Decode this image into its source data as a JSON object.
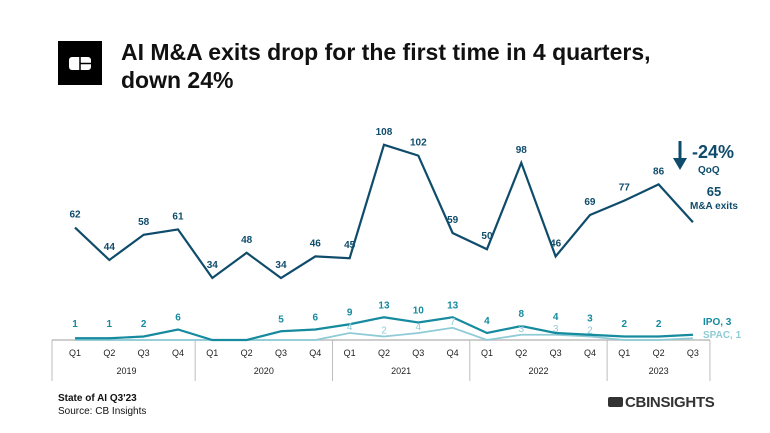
{
  "header": {
    "title_line1": "AI M&A exits drop for the first time in 4 quarters,",
    "title_line2": "down 24%",
    "logo": "CB Insights logo mark"
  },
  "footer": {
    "report": "State of AI Q3'23",
    "source": "Source: CB Insights",
    "brand": "CBINSIGHTS"
  },
  "colors": {
    "ma": "#0f4c6b",
    "ipo": "#168a9e",
    "spac": "#8fcbd6",
    "axis": "#bdbdbd"
  },
  "chart_data": {
    "type": "line",
    "title": "AI M&A exits drop for the first time in 4 quarters, down 24%",
    "quarters": [
      "Q1",
      "Q2",
      "Q3",
      "Q4",
      "Q1",
      "Q2",
      "Q3",
      "Q4",
      "Q1",
      "Q2",
      "Q3",
      "Q4",
      "Q1",
      "Q2",
      "Q3",
      "Q4",
      "Q1",
      "Q2",
      "Q3"
    ],
    "years": [
      {
        "label": "2019",
        "count": 4
      },
      {
        "label": "2020",
        "count": 4
      },
      {
        "label": "2021",
        "count": 4
      },
      {
        "label": "2022",
        "count": 4
      },
      {
        "label": "2023",
        "count": 3
      }
    ],
    "series": [
      {
        "name": "M&A exits",
        "values": [
          62,
          44,
          58,
          61,
          34,
          48,
          34,
          46,
          45,
          108,
          102,
          59,
          50,
          98,
          46,
          69,
          77,
          86,
          65
        ]
      },
      {
        "name": "IPO",
        "values": [
          1,
          1,
          2,
          6,
          0,
          0,
          5,
          6,
          9,
          13,
          10,
          13,
          4,
          8,
          4,
          3,
          2,
          2,
          3
        ]
      },
      {
        "name": "SPAC",
        "values": [
          0,
          0,
          0,
          0,
          0,
          0,
          0,
          0,
          4,
          2,
          4,
          7,
          0,
          3,
          3,
          2,
          0,
          0,
          1
        ]
      }
    ],
    "annotations": {
      "change": "-24%",
      "change_sub": "QoQ",
      "ma_end_value": "65",
      "ma_end_label": "M&A exits",
      "ipo_end_label": "IPO, 3",
      "spac_end_label": "SPAC, 1"
    },
    "grid": false
  }
}
